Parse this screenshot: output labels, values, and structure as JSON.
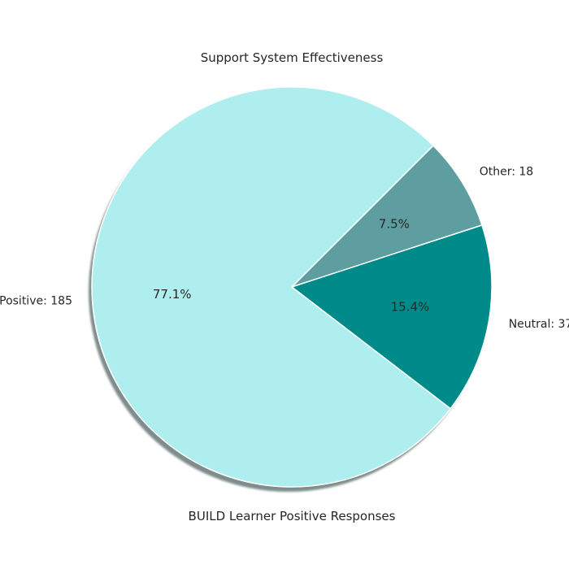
{
  "chart_data": {
    "type": "pie",
    "title": "Support System Effectiveness",
    "xlabel": "BUILD Learner Positive Responses",
    "ylabel": "",
    "start_angle_deg": 45,
    "direction": "clockwise",
    "shadow": true,
    "slices": [
      {
        "name": "Other",
        "label": "Other: 18",
        "value": 18,
        "pct_label": "7.5%",
        "color": "#5f9ea0"
      },
      {
        "name": "Neutral",
        "label": "Neutral: 37",
        "value": 37,
        "pct_label": "15.4%",
        "color": "#008b8a"
      },
      {
        "name": "Positive",
        "label": "Positive: 185",
        "value": 185,
        "pct_label": "77.1%",
        "color": "#afeeee"
      }
    ],
    "edge_color": "#ffffff",
    "shadow_color": "#7f8c8c"
  }
}
